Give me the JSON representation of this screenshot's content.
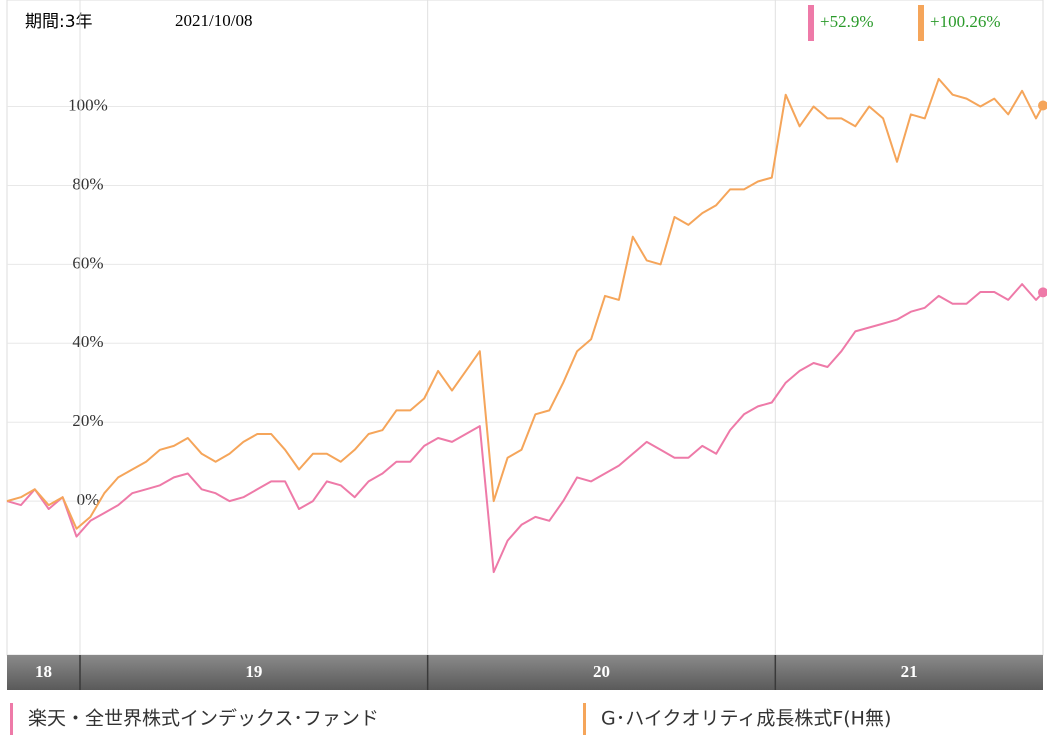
{
  "chart_data": {
    "type": "line",
    "period": "期間:3年",
    "date": "2021/10/08",
    "xlim": [
      2018.79,
      2021.77
    ],
    "xticks": [
      {
        "value": 2018,
        "label": "18"
      },
      {
        "value": 2019,
        "label": "19"
      },
      {
        "value": 2020,
        "label": "20"
      },
      {
        "value": 2021,
        "label": "21"
      }
    ],
    "ylim": [
      -39,
      127
    ],
    "yticks": [
      {
        "value": 0,
        "label": "0%"
      },
      {
        "value": 20,
        "label": "20%"
      },
      {
        "value": 40,
        "label": "40%"
      },
      {
        "value": 60,
        "label": "60%"
      },
      {
        "value": 80,
        "label": "80%"
      },
      {
        "value": 100,
        "label": "100%"
      }
    ],
    "grid": true,
    "x": [
      2018.79,
      2018.83,
      2018.87,
      2018.91,
      2018.95,
      2018.99,
      2019.03,
      2019.07,
      2019.11,
      2019.15,
      2019.19,
      2019.23,
      2019.27,
      2019.31,
      2019.35,
      2019.39,
      2019.43,
      2019.47,
      2019.51,
      2019.55,
      2019.59,
      2019.63,
      2019.67,
      2019.71,
      2019.75,
      2019.79,
      2019.83,
      2019.87,
      2019.91,
      2019.95,
      2019.99,
      2020.03,
      2020.07,
      2020.11,
      2020.15,
      2020.19,
      2020.23,
      2020.27,
      2020.31,
      2020.35,
      2020.39,
      2020.43,
      2020.47,
      2020.51,
      2020.55,
      2020.59,
      2020.63,
      2020.67,
      2020.71,
      2020.75,
      2020.79,
      2020.83,
      2020.87,
      2020.91,
      2020.95,
      2020.99,
      2021.03,
      2021.07,
      2021.11,
      2021.15,
      2021.19,
      2021.23,
      2021.27,
      2021.31,
      2021.35,
      2021.39,
      2021.43,
      2021.47,
      2021.51,
      2021.55,
      2021.59,
      2021.63,
      2021.67,
      2021.71,
      2021.75,
      2021.77
    ],
    "series": [
      {
        "name": "楽天・全世界株式インデックス･ファンド",
        "color": "#ee7aa8",
        "last_label": "+52.9%",
        "values": [
          0,
          -1,
          3,
          -2,
          1,
          -9,
          -5,
          -3,
          -1,
          2,
          3,
          4,
          6,
          7,
          3,
          2,
          0,
          1,
          3,
          5,
          5,
          -2,
          0,
          5,
          4,
          1,
          5,
          7,
          10,
          10,
          14,
          16,
          15,
          17,
          19,
          -18,
          -10,
          -6,
          -4,
          -5,
          0,
          6,
          5,
          7,
          9,
          12,
          15,
          13,
          11,
          11,
          14,
          12,
          18,
          22,
          24,
          25,
          30,
          33,
          35,
          34,
          38,
          43,
          44,
          45,
          46,
          48,
          49,
          52,
          50,
          50,
          53,
          53,
          51,
          55,
          51,
          52.9
        ]
      },
      {
        "name": "G･ハイクオリティ成長株式F(H無)",
        "color": "#f5a55a",
        "last_label": "+100.26%",
        "values": [
          0,
          1,
          3,
          -1,
          1,
          -7,
          -4,
          2,
          6,
          8,
          10,
          13,
          14,
          16,
          12,
          10,
          12,
          15,
          17,
          17,
          13,
          8,
          12,
          12,
          10,
          13,
          17,
          18,
          23,
          23,
          26,
          33,
          28,
          33,
          38,
          0,
          11,
          13,
          22,
          23,
          30,
          38,
          41,
          52,
          51,
          67,
          61,
          60,
          72,
          70,
          73,
          75,
          79,
          79,
          81,
          82,
          103,
          95,
          100,
          97,
          97,
          95,
          100,
          97,
          86,
          98,
          97,
          107,
          103,
          102,
          100,
          102,
          98,
          104,
          97,
          100.26
        ]
      }
    ]
  }
}
